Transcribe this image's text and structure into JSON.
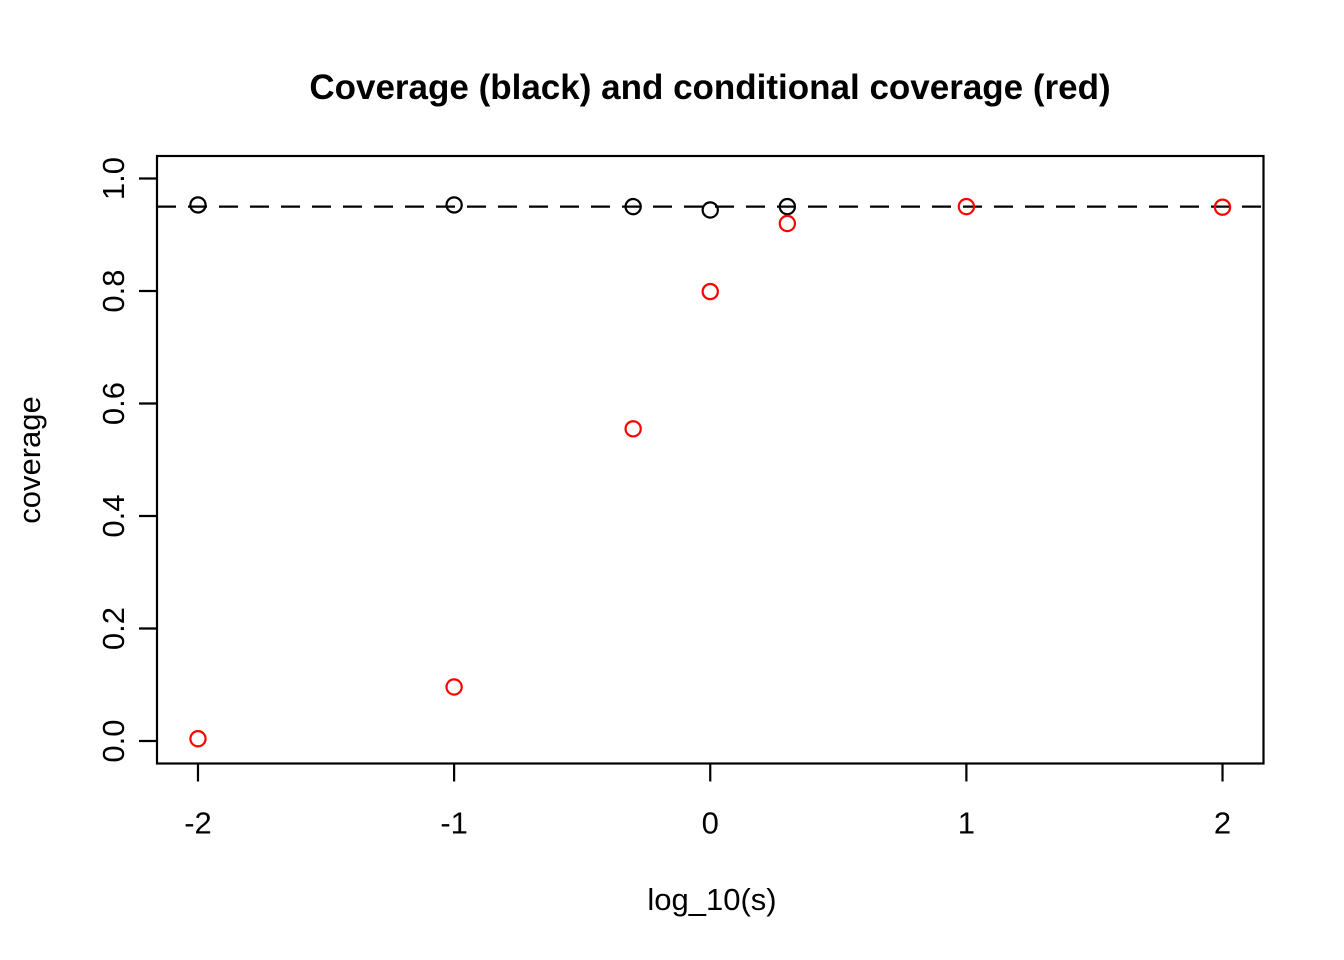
{
  "chart_data": {
    "type": "scatter",
    "title": "Coverage (black) and conditional coverage (red)",
    "xlabel": "log_10(s)",
    "ylabel": "coverage",
    "xlim": [
      -2.16,
      2.16
    ],
    "ylim": [
      -0.04,
      1.04
    ],
    "grid": false,
    "legend": "none (series identified by color in title)",
    "x_ticks": [
      {
        "value": -2,
        "label": "-2"
      },
      {
        "value": -1,
        "label": "-1"
      },
      {
        "value": 0,
        "label": "0"
      },
      {
        "value": 1,
        "label": "1"
      },
      {
        "value": 2,
        "label": "2"
      }
    ],
    "y_ticks": [
      {
        "value": 0.0,
        "label": "0.0"
      },
      {
        "value": 0.2,
        "label": "0.2"
      },
      {
        "value": 0.4,
        "label": "0.4"
      },
      {
        "value": 0.6,
        "label": "0.6"
      },
      {
        "value": 0.8,
        "label": "0.8"
      },
      {
        "value": 1.0,
        "label": "1.0"
      }
    ],
    "reference_line": {
      "y": 0.95,
      "style": "dashed",
      "color": "#000000"
    },
    "series": [
      {
        "name": "coverage",
        "color": "#000000",
        "marker": "open-circle",
        "points": [
          {
            "x": -2,
            "y": 0.953
          },
          {
            "x": -1,
            "y": 0.953
          },
          {
            "x": -0.301,
            "y": 0.95
          },
          {
            "x": 0,
            "y": 0.944
          },
          {
            "x": 0.301,
            "y": 0.95
          }
        ]
      },
      {
        "name": "conditional coverage",
        "color": "#FF0000",
        "marker": "open-circle",
        "points": [
          {
            "x": -2,
            "y": 0.004
          },
          {
            "x": -1,
            "y": 0.096
          },
          {
            "x": -0.301,
            "y": 0.555
          },
          {
            "x": 0,
            "y": 0.799
          },
          {
            "x": 0.301,
            "y": 0.92
          },
          {
            "x": 1,
            "y": 0.95
          },
          {
            "x": 2,
            "y": 0.949
          }
        ]
      }
    ]
  }
}
